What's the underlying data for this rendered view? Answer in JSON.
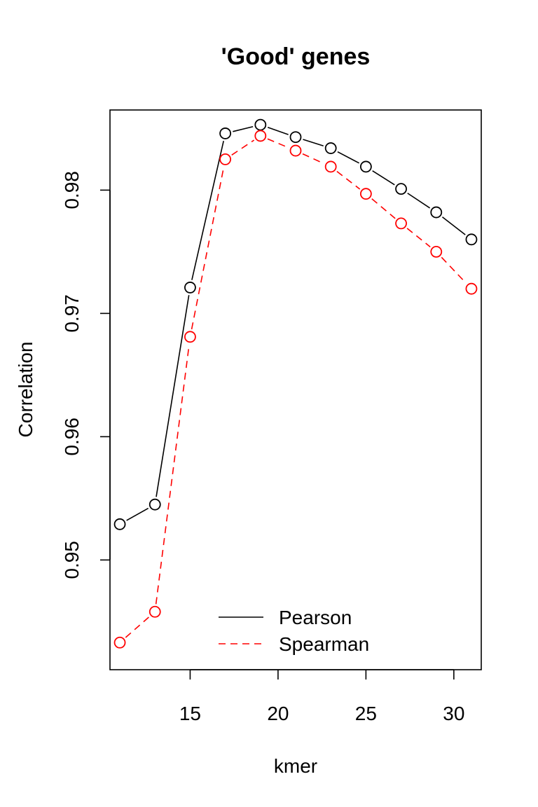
{
  "chart_data": {
    "type": "line",
    "title": "'Good' genes",
    "xlabel": "kmer",
    "ylabel": "Correlation",
    "x": [
      11,
      13,
      15,
      17,
      19,
      21,
      23,
      25,
      27,
      29,
      31
    ],
    "xlim": [
      10.44,
      31.56
    ],
    "ylim": [
      0.9411,
      0.9865
    ],
    "xticks": [
      15,
      20,
      25,
      30
    ],
    "yticks": [
      0.95,
      0.96,
      0.97,
      0.98
    ],
    "ytick_labels": [
      "0.95",
      "0.96",
      "0.97",
      "0.98"
    ],
    "grid": false,
    "legend_position": "bottom-center",
    "series": [
      {
        "name": "Pearson",
        "color": "#000000",
        "line_style": "solid",
        "marker": "open-circle",
        "values": [
          0.9529,
          0.9545,
          0.9721,
          0.9846,
          0.9853,
          0.9843,
          0.9834,
          0.9819,
          0.9801,
          0.9782,
          0.976
        ]
      },
      {
        "name": "Spearman",
        "color": "#ff0000",
        "line_style": "dashed",
        "marker": "open-circle",
        "values": [
          0.9433,
          0.9458,
          0.9681,
          0.9825,
          0.9844,
          0.9832,
          0.9819,
          0.9797,
          0.9773,
          0.975,
          0.972
        ]
      }
    ]
  }
}
